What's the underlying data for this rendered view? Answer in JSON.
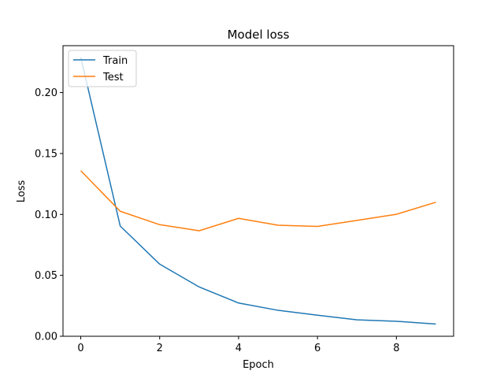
{
  "chart_data": {
    "type": "line",
    "title": "Model loss",
    "xlabel": "Epoch",
    "ylabel": "Loss",
    "x": [
      0,
      1,
      2,
      3,
      4,
      5,
      6,
      7,
      8,
      9
    ],
    "xlim": [
      -0.45,
      9.45
    ],
    "ylim": [
      0,
      0.2385
    ],
    "xticks": [
      0,
      2,
      4,
      6,
      8
    ],
    "xtick_labels": [
      "0",
      "2",
      "4",
      "6",
      "8"
    ],
    "yticks": [
      0.0,
      0.05,
      0.1,
      0.15,
      0.2
    ],
    "ytick_labels": [
      "0.00",
      "0.05",
      "0.10",
      "0.15",
      "0.20"
    ],
    "grid": false,
    "legend_position": "top-left",
    "series": [
      {
        "name": "Train",
        "color": "#1f77b4",
        "values": [
          0.229,
          0.0905,
          0.0592,
          0.0405,
          0.0273,
          0.0213,
          0.0173,
          0.0135,
          0.0123,
          0.01
        ]
      },
      {
        "name": "Test",
        "color": "#ff7f0e",
        "values": [
          0.1359,
          0.1026,
          0.0916,
          0.0866,
          0.0968,
          0.0911,
          0.0902,
          0.0951,
          0.1001,
          0.11
        ]
      }
    ]
  }
}
